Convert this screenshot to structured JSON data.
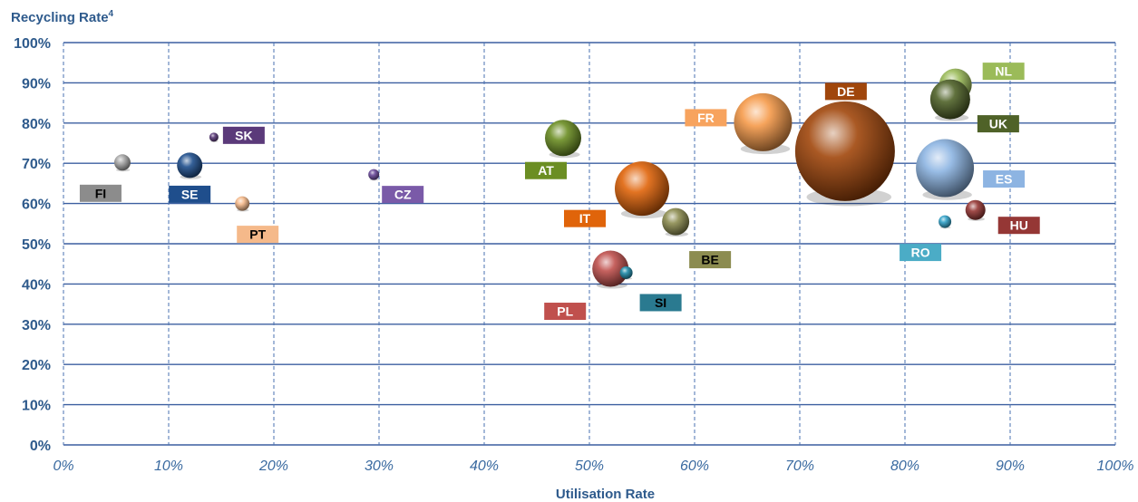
{
  "chart_data": {
    "type": "scatter",
    "subtype": "bubble",
    "title": "",
    "ylabel": "Recycling Rate",
    "ylabel_superscript": "4",
    "xlabel": "Utilisation Rate",
    "xlim": [
      0,
      100
    ],
    "ylim": [
      0,
      100
    ],
    "x_ticks": [
      "0%",
      "10%",
      "20%",
      "30%",
      "40%",
      "50%",
      "60%",
      "70%",
      "80%",
      "90%",
      "100%"
    ],
    "y_ticks": [
      "0%",
      "10%",
      "20%",
      "30%",
      "40%",
      "50%",
      "60%",
      "70%",
      "80%",
      "90%",
      "100%"
    ],
    "grid": true,
    "points": [
      {
        "label": "FI",
        "x": 5.6,
        "y": 70.2,
        "size": 9,
        "color": "#a6a6a6",
        "label_color": "#8c8c8c",
        "label_text_color": "#000000"
      },
      {
        "label": "SE",
        "x": 12.0,
        "y": 69.5,
        "size": 14,
        "color": "#1f4e8c",
        "label_color": "#1f4e8c",
        "label_text_color": "#ffffff"
      },
      {
        "label": "SK",
        "x": 14.3,
        "y": 76.5,
        "size": 5,
        "color": "#5b3a7a",
        "label_color": "#5b3a7a",
        "label_text_color": "#ffffff"
      },
      {
        "label": "PT",
        "x": 17.0,
        "y": 60.0,
        "size": 8,
        "color": "#f5b98a",
        "label_color": "#f5b98a",
        "label_text_color": "#000000"
      },
      {
        "label": "CZ",
        "x": 29.5,
        "y": 67.2,
        "size": 6,
        "color": "#6a4a9a",
        "label_color": "#7a5aa8",
        "label_text_color": "#ffffff"
      },
      {
        "label": "AT",
        "x": 47.5,
        "y": 76.3,
        "size": 20,
        "color": "#6b8e23",
        "label_color": "#6b8e23",
        "label_text_color": "#ffffff"
      },
      {
        "label": "IT",
        "x": 55.0,
        "y": 63.7,
        "size": 30,
        "color": "#e0640a",
        "label_color": "#e0640a",
        "label_text_color": "#ffffff"
      },
      {
        "label": "BE",
        "x": 58.2,
        "y": 55.5,
        "size": 15,
        "color": "#8c8c50",
        "label_color": "#8c8c50",
        "label_text_color": "#000000"
      },
      {
        "label": "PL",
        "x": 52.0,
        "y": 43.8,
        "size": 20,
        "color": "#c0504d",
        "label_color": "#c0504d",
        "label_text_color": "#ffffff"
      },
      {
        "label": "SI",
        "x": 53.5,
        "y": 42.8,
        "size": 7,
        "color": "#1f8aa8",
        "label_color": "#2a7a90",
        "label_text_color": "#000000"
      },
      {
        "label": "FR",
        "x": 66.5,
        "y": 80.2,
        "size": 32,
        "color": "#f59a4a",
        "label_color": "#f7a35e",
        "label_text_color": "#ffffff"
      },
      {
        "label": "DE",
        "x": 74.3,
        "y": 73.0,
        "size": 55,
        "color": "#a0460c",
        "label_color": "#a0460c",
        "label_text_color": "#ffffff"
      },
      {
        "label": "NL",
        "x": 84.8,
        "y": 89.5,
        "size": 18,
        "color": "#9bbb59",
        "label_color": "#9bbb59",
        "label_text_color": "#ffffff"
      },
      {
        "label": "UK",
        "x": 84.3,
        "y": 85.9,
        "size": 22,
        "color": "#4f6228",
        "label_color": "#4f6228",
        "label_text_color": "#ffffff"
      },
      {
        "label": "ES",
        "x": 83.8,
        "y": 68.8,
        "size": 32,
        "color": "#8db4e2",
        "label_color": "#8db4e2",
        "label_text_color": "#ffffff"
      },
      {
        "label": "HU",
        "x": 86.7,
        "y": 58.4,
        "size": 11,
        "color": "#953735",
        "label_color": "#953735",
        "label_text_color": "#ffffff"
      },
      {
        "label": "RO",
        "x": 83.8,
        "y": 55.5,
        "size": 7,
        "color": "#31a2c8",
        "label_color": "#4bacc6",
        "label_text_color": "#ffffff"
      }
    ],
    "colors": {
      "axis_text": "#2e5a8c",
      "x_tick_text": "#3a6aa0",
      "grid_solid": "#3c5fa0",
      "grid_dashed": "#4a72b0"
    }
  }
}
